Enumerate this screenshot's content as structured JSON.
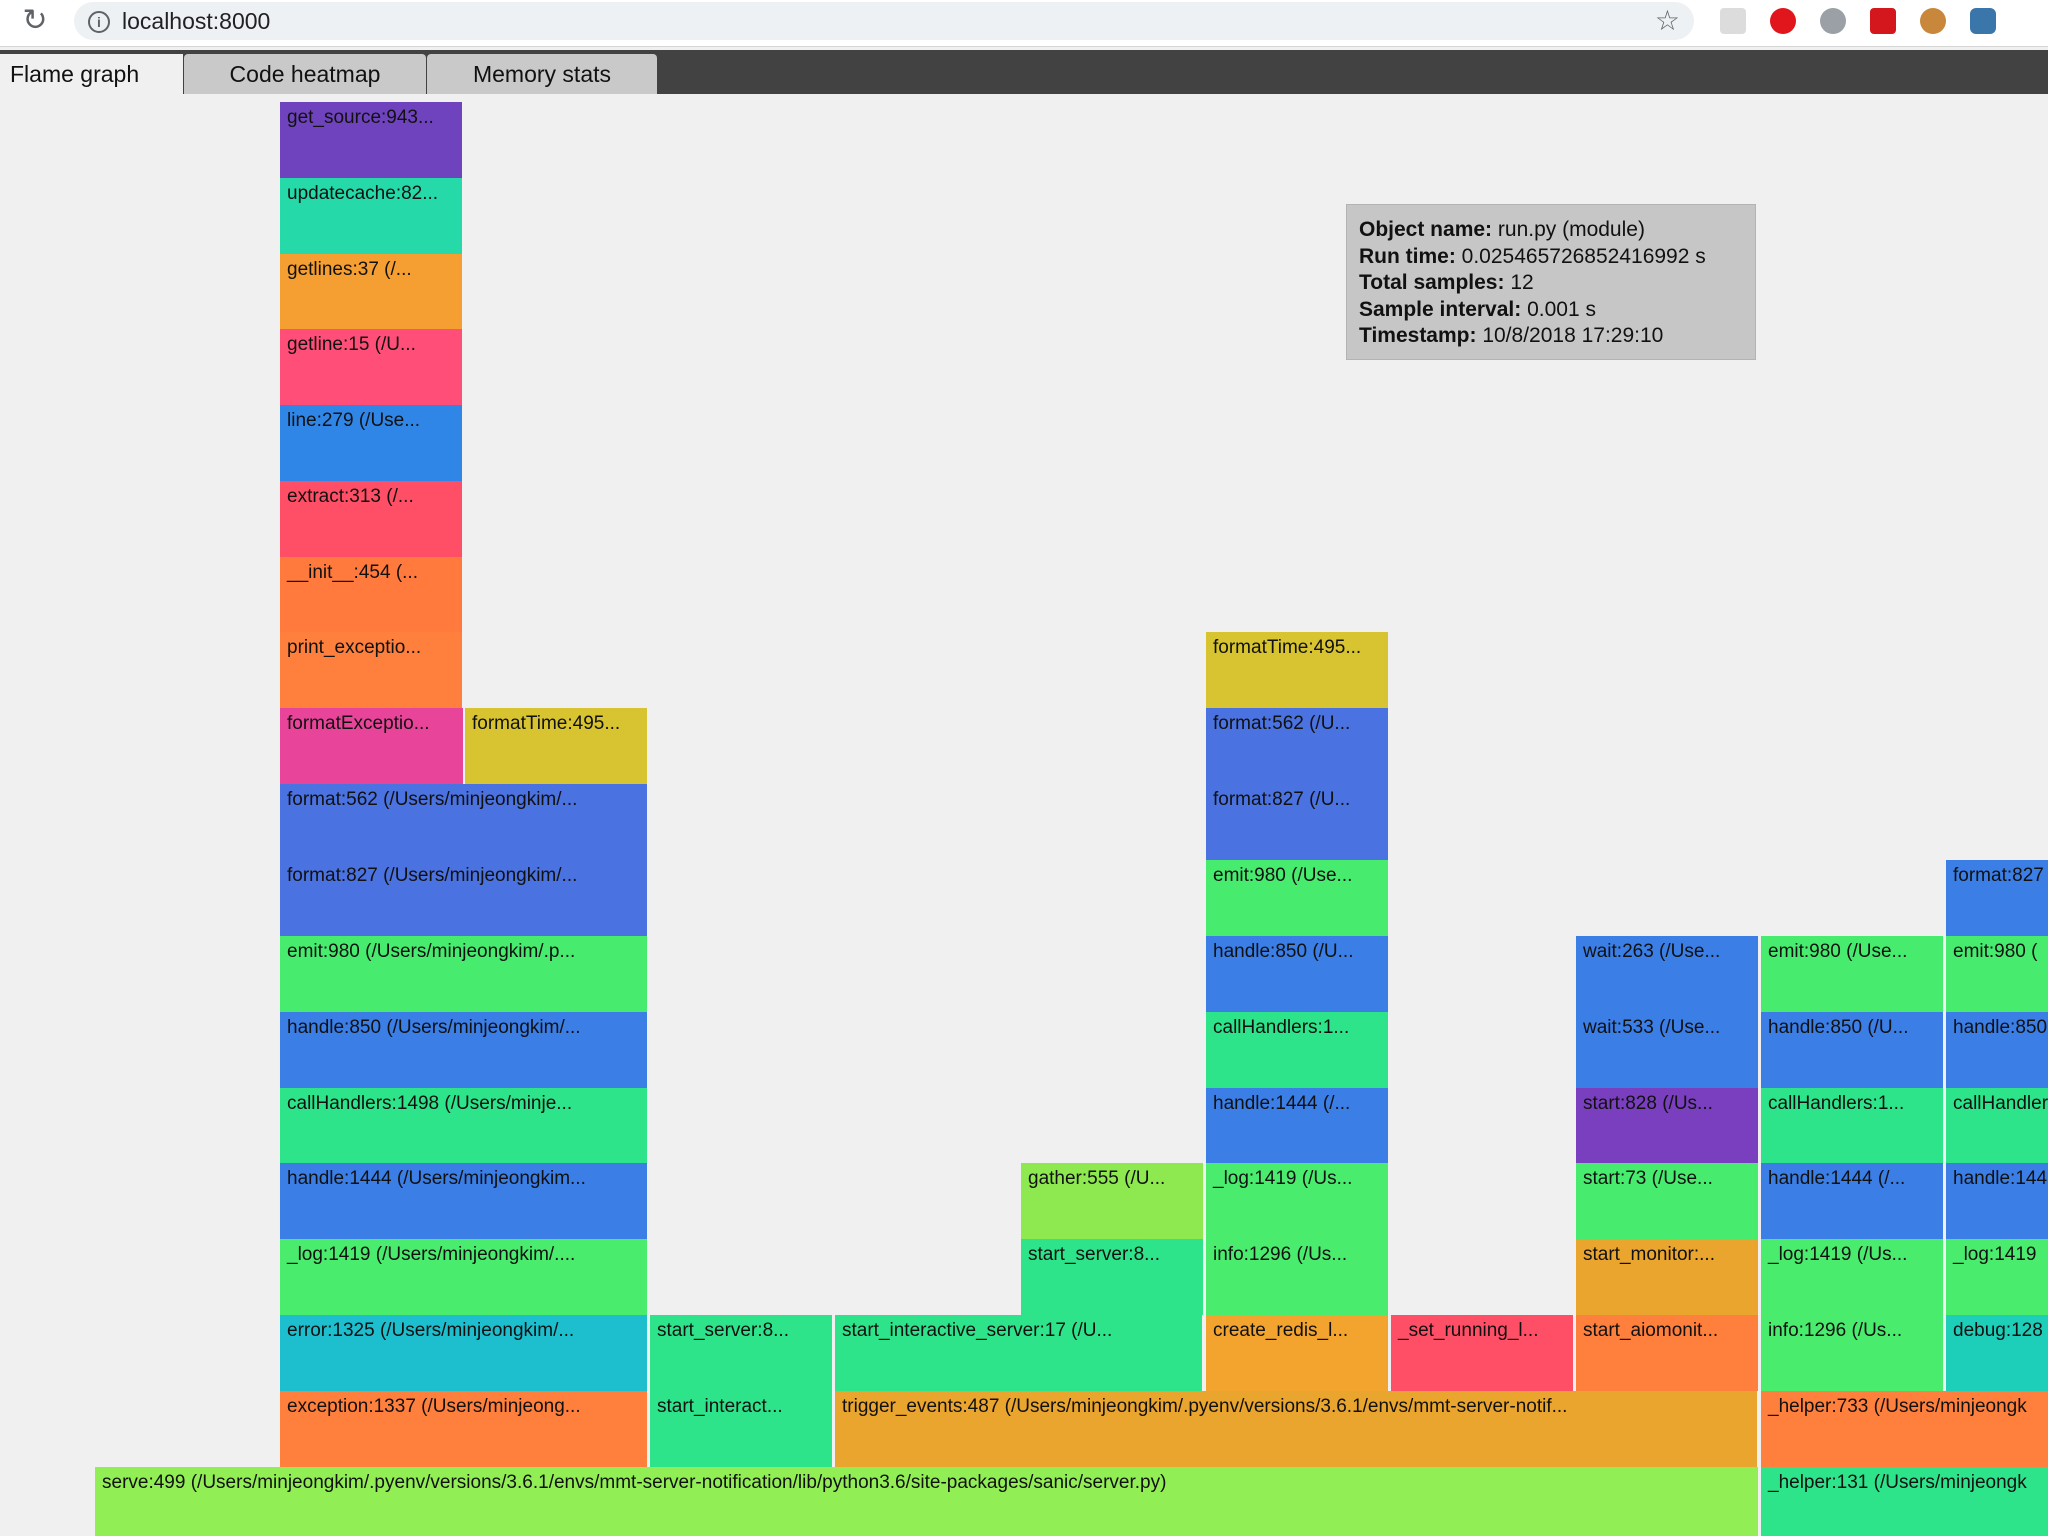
{
  "browser": {
    "url": "localhost:8000"
  },
  "tabs": [
    {
      "label": "Flame graph",
      "active": true
    },
    {
      "label": "Code heatmap",
      "active": false
    },
    {
      "label": "Memory stats",
      "active": false
    }
  ],
  "tooltip": {
    "object_name_label": "Object name:",
    "object_name": "run.py (module)",
    "run_time_label": "Run time:",
    "run_time": "0.025465726852416992 s",
    "total_samples_label": "Total samples:",
    "total_samples": "12",
    "sample_interval_label": "Sample interval:",
    "sample_interval": "0.001 s",
    "timestamp_label": "Timestamp:",
    "timestamp": "10/8/2018 17:29:10"
  },
  "flame_nodes": [
    {
      "label": "get_source:943...",
      "color": "#6f43bd"
    },
    {
      "label": "updatecache:82...",
      "color": "#25d9a8"
    },
    {
      "label": "getlines:37 (/...",
      "color": "#f59f32"
    },
    {
      "label": "getline:15 (/U...",
      "color": "#ff4f78"
    },
    {
      "label": "line:279 (/Use...",
      "color": "#2f86e6"
    },
    {
      "label": "extract:313 (/...",
      "color": "#ff4f66"
    },
    {
      "label": "__init__:454 (...",
      "color": "#ff7a3c"
    },
    {
      "label": "print_exceptio...",
      "color": "#ff7f3d"
    },
    {
      "label": "formatExceptio...",
      "color": "#e8449a"
    },
    {
      "label": "formatTime:495...",
      "color": "#d8c430"
    },
    {
      "label": "format:562 (/Users/minjeongkim/...",
      "color": "#4a72e0"
    },
    {
      "label": "format:827 (/Users/minjeongkim/...",
      "color": "#4a72e0"
    },
    {
      "label": "emit:980 (/Users/minjeongkim/.p...",
      "color": "#47ec6e"
    },
    {
      "label": "handle:850 (/Users/minjeongkim/...",
      "color": "#3a7ee6"
    },
    {
      "label": "callHandlers:1498 (/Users/minje...",
      "color": "#2ee48a"
    },
    {
      "label": "handle:1444 (/Users/minjeongkim...",
      "color": "#3a7ee6"
    },
    {
      "label": "_log:1419 (/Users/minjeongkim/....",
      "color": "#4aec6e"
    },
    {
      "label": "error:1325 (/Users/minjeongkim/...",
      "color": "#1dbfcf"
    },
    {
      "label": "exception:1337 (/Users/minjeong...",
      "color": "#ff7f3d"
    },
    {
      "label": "start_server:8...",
      "color": "#2ee48a"
    },
    {
      "label": "start_interact...",
      "color": "#2ee48a"
    },
    {
      "label": "start_interactive_server:17 (/U...",
      "color": "#2ee48a"
    },
    {
      "label": "gather:555 (/U...",
      "color": "#8ee84f"
    },
    {
      "label": "start_server:8...",
      "color": "#2ee48a"
    },
    {
      "label": "trigger_events:487 (/Users/minjeongkim/.pyenv/versions/3.6.1/envs/mmt-server-notif...",
      "color": "#eaa52f"
    },
    {
      "label": "formatTime:495...",
      "color": "#d8c430"
    },
    {
      "label": "format:562 (/U...",
      "color": "#4a72e0"
    },
    {
      "label": "format:827 (/U...",
      "color": "#4a72e0"
    },
    {
      "label": "emit:980 (/Use...",
      "color": "#47ec6e"
    },
    {
      "label": "handle:850 (/U...",
      "color": "#3a7ee6"
    },
    {
      "label": "callHandlers:1...",
      "color": "#2ee48a"
    },
    {
      "label": "handle:1444 (/...",
      "color": "#3a7ee6"
    },
    {
      "label": "_log:1419 (/Us...",
      "color": "#4aec6e"
    },
    {
      "label": "info:1296 (/Us...",
      "color": "#4aec6e"
    },
    {
      "label": "create_redis_l...",
      "color": "#f2a42f"
    },
    {
      "label": "_set_running_l...",
      "color": "#ff4f66"
    },
    {
      "label": "wait:263 (/Use...",
      "color": "#3a7ee6"
    },
    {
      "label": "wait:533 (/Use...",
      "color": "#3a7ee6"
    },
    {
      "label": "start:828 (/Us...",
      "color": "#7a3fbf"
    },
    {
      "label": "start:73 (/Use...",
      "color": "#47ec6e"
    },
    {
      "label": "start_monitor:...",
      "color": "#eaa52f"
    },
    {
      "label": "start_aiomonit...",
      "color": "#ff7f3d"
    },
    {
      "label": "emit:980 (/Use...",
      "color": "#47ec6e"
    },
    {
      "label": "handle:850 (/U...",
      "color": "#3a7ee6"
    },
    {
      "label": "callHandlers:1...",
      "color": "#2ee48a"
    },
    {
      "label": "handle:1444 (/...",
      "color": "#3a7ee6"
    },
    {
      "label": "_log:1419 (/Us...",
      "color": "#4aec6e"
    },
    {
      "label": "info:1296 (/Us...",
      "color": "#4aec6e"
    },
    {
      "label": "_helper:733 (/Users/minjeongk",
      "color": "#ff7f3d"
    },
    {
      "label": "_helper:131 (/Users/minjeongk",
      "color": "#2ee48a"
    },
    {
      "label": "format:827",
      "color": "#3a7ee6"
    },
    {
      "label": "emit:980 (",
      "color": "#47ec6e"
    },
    {
      "label": "handle:850",
      "color": "#3a7ee6"
    },
    {
      "label": "callHandlers",
      "color": "#2ee48a"
    },
    {
      "label": "handle:144",
      "color": "#3a7ee6"
    },
    {
      "label": "_log:1419",
      "color": "#4aec6e"
    },
    {
      "label": "debug:128",
      "color": "#1dcfb8"
    },
    {
      "label": "serve:499 (/Users/minjeongkim/.pyenv/versions/3.6.1/envs/mmt-server-notification/lib/python3.6/site-packages/sanic/server.py)",
      "color": "#92ee55"
    }
  ]
}
